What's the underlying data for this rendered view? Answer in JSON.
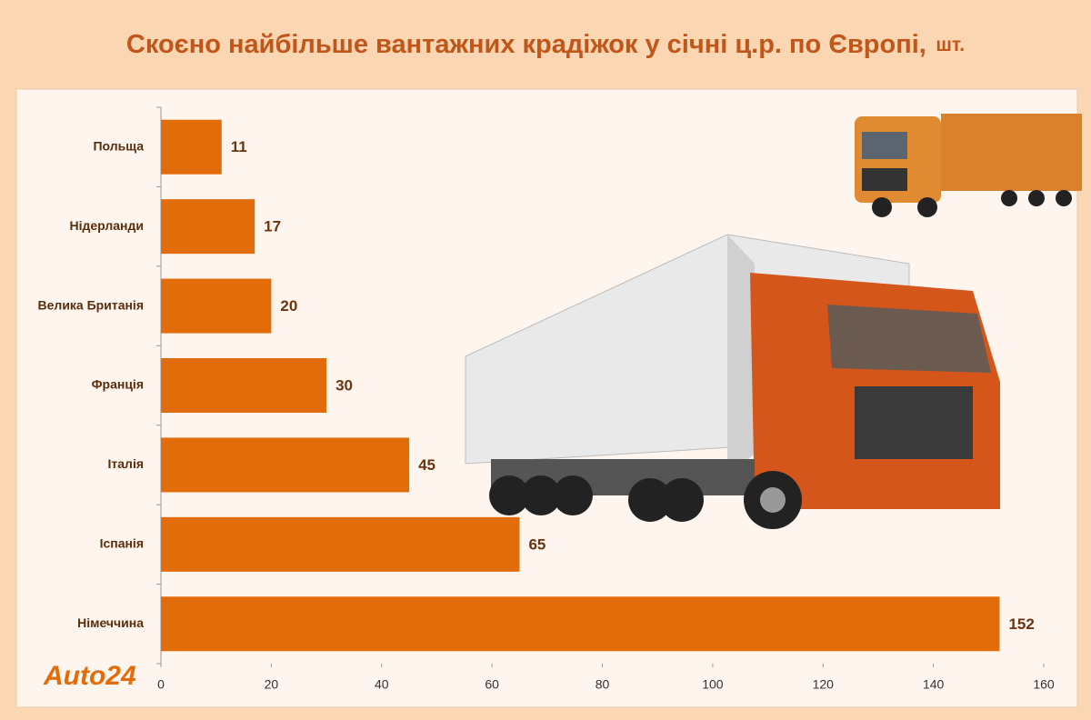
{
  "chart_data": {
    "type": "bar",
    "orientation": "horizontal",
    "title": "Скоєно найбільше вантажних крадіжок у січні ц.р. по Європі,",
    "title_unit": "шт.",
    "logo": "Auto24",
    "categories": [
      "Польща",
      "Нідерланди",
      "Велика Британія",
      "Франція",
      "Італія",
      "Іспанія",
      "Німеччина"
    ],
    "values": [
      11,
      17,
      20,
      30,
      45,
      65,
      152
    ],
    "color": "#e36c0a",
    "xlim": [
      0,
      160
    ],
    "xticks": [
      0,
      20,
      40,
      60,
      80,
      100,
      120,
      140,
      160
    ]
  }
}
